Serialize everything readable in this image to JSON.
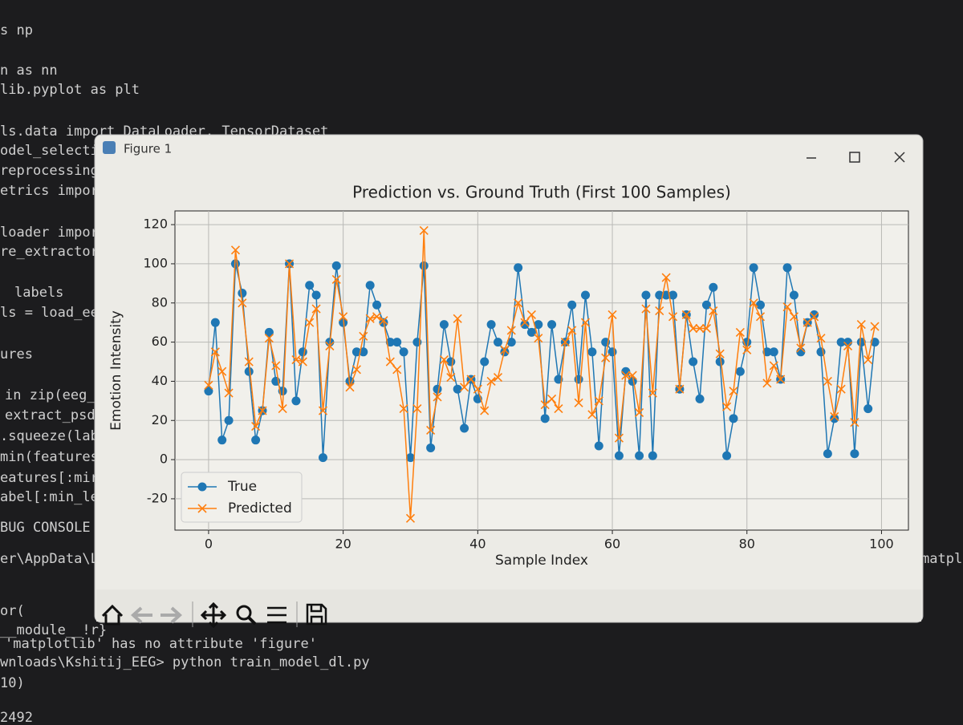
{
  "editor": {
    "lines": [
      "s np",
      "n as nn",
      "lib.pyplot as plt",
      "ls.data import DataLoader, TensorDataset",
      "odel_selecti",
      "reprocessing",
      "etrics impor",
      "loader impor",
      "re_extractor",
      "labels",
      "ls = load_ee",
      "ures",
      "in zip(eeg_",
      "extract_psd",
      ".squeeze(lab",
      "min(features",
      "eatures[:mir",
      "abel[:min_le",
      "BUG CONSOLE",
      "er\\AppData\\Lo",
      "or(",
      "__module__!r}",
      "'matplotlib' has no attribute 'figure'",
      "wnloads\\Kshitij_EEG> python train_model_dl.py",
      "10)",
      "2492",
      "matplo"
    ]
  },
  "window": {
    "title": "Figure 1"
  },
  "chart_data": {
    "type": "line",
    "title": "Prediction vs. Ground Truth (First 100 Samples)",
    "x_label": "Sample Index",
    "y_label": "Emotion Intensity",
    "x": [
      0,
      1,
      2,
      3,
      4,
      5,
      6,
      7,
      8,
      9,
      10,
      11,
      12,
      13,
      14,
      15,
      16,
      17,
      18,
      19,
      20,
      21,
      22,
      23,
      24,
      25,
      26,
      27,
      28,
      29,
      30,
      31,
      32,
      33,
      34,
      35,
      36,
      37,
      38,
      39,
      40,
      41,
      42,
      43,
      44,
      45,
      46,
      47,
      48,
      49,
      50,
      51,
      52,
      53,
      54,
      55,
      56,
      57,
      58,
      59,
      60,
      61,
      62,
      63,
      64,
      65,
      66,
      67,
      68,
      69,
      70,
      71,
      72,
      73,
      74,
      75,
      76,
      77,
      78,
      79,
      80,
      81,
      82,
      83,
      84,
      85,
      86,
      87,
      88,
      89,
      90,
      91,
      92,
      93,
      94,
      95,
      96,
      97,
      98,
      99
    ],
    "series": [
      {
        "name": "True",
        "color": "#1f77b4",
        "marker": "o",
        "values": [
          35,
          70,
          10,
          20,
          100,
          85,
          45,
          10,
          25,
          65,
          40,
          35,
          100,
          30,
          55,
          89,
          84,
          1,
          60,
          99,
          70,
          40,
          55,
          55,
          89,
          79,
          70,
          60,
          60,
          55,
          1,
          60,
          99,
          6,
          36,
          69,
          50,
          36,
          16,
          41,
          31,
          50,
          69,
          60,
          55,
          60,
          98,
          69,
          65,
          69,
          21,
          69,
          41,
          60,
          79,
          41,
          84,
          55,
          7,
          60,
          55,
          2,
          45,
          40,
          2,
          84,
          2,
          84,
          84,
          84,
          36,
          74,
          50,
          31,
          79,
          88,
          50,
          2,
          21,
          45,
          60,
          98,
          79,
          55,
          55,
          41,
          98,
          84,
          55,
          70,
          74,
          55,
          3,
          21,
          60,
          60,
          3,
          60,
          26,
          60
        ]
      },
      {
        "name": "Predicted",
        "color": "#ff7f0e",
        "marker": "x",
        "values": [
          38,
          55,
          45,
          34,
          107,
          80,
          50,
          17,
          25,
          62,
          48,
          26,
          100,
          51,
          50,
          70,
          77,
          25,
          58,
          92,
          73,
          37,
          46,
          63,
          72,
          73,
          71,
          50,
          46,
          26,
          -30,
          26,
          117,
          15,
          32,
          51,
          42,
          72,
          37,
          41,
          36,
          25,
          40,
          42,
          56,
          66,
          80,
          70,
          74,
          62,
          28,
          31,
          26,
          60,
          66,
          29,
          70,
          23,
          30,
          52,
          74,
          11,
          43,
          43,
          24,
          77,
          34,
          76,
          93,
          73,
          36,
          74,
          67,
          67,
          67,
          76,
          54,
          27,
          35,
          65,
          56,
          80,
          73,
          39,
          48,
          41,
          78,
          73,
          57,
          70,
          73,
          62,
          40,
          22,
          36,
          58,
          19,
          69,
          51,
          68
        ]
      }
    ],
    "xlim": [
      -5,
      104
    ],
    "xticks": [
      0,
      20,
      40,
      60,
      80,
      100
    ],
    "ylim": [
      -36,
      127
    ],
    "yticks": [
      -20,
      0,
      20,
      40,
      60,
      80,
      100,
      120
    ],
    "grid": true,
    "legend": "lower left"
  }
}
